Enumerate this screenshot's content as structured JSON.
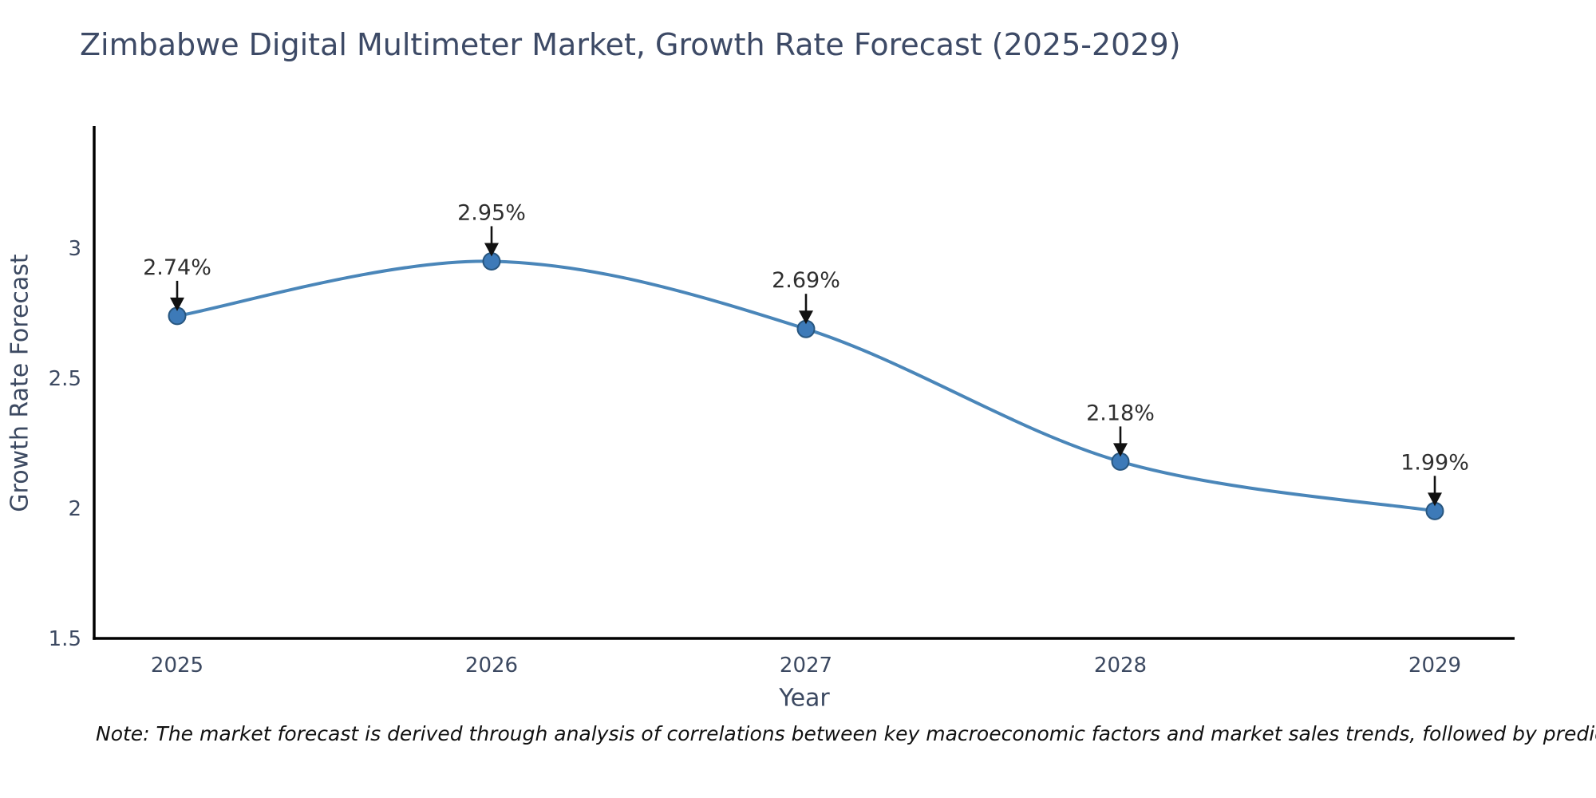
{
  "title": "Zimbabwe Digital Multimeter Market, Growth Rate Forecast (2025-2029)",
  "note": "Note: The market forecast is derived through analysis of correlations between key macroeconomic factors and market sales trends, followed by predictive modeling to project future sales",
  "chart_data": {
    "type": "line",
    "title": "Zimbabwe Digital Multimeter Market, Growth Rate Forecast (2025-2029)",
    "xlabel": "Year",
    "ylabel": "Growth Rate Forecast",
    "x": [
      2025,
      2026,
      2027,
      2028,
      2029
    ],
    "values": [
      2.74,
      2.95,
      2.69,
      2.18,
      1.99
    ],
    "point_labels": [
      "2.74%",
      "2.95%",
      "2.69%",
      "2.18%",
      "1.99%"
    ],
    "yticks": [
      1.5,
      2,
      2.5,
      3
    ],
    "ytick_labels": [
      "1.5",
      "2",
      "2.5",
      "3"
    ],
    "ylim": [
      1.5,
      3.47
    ],
    "grid": false,
    "legend": "none",
    "smooth": true,
    "annotations_style": "value-above-with-black-arrow",
    "colors": {
      "line": "#4a86b9",
      "marker_fill": "#3d7ab8",
      "marker_edge": "#28567f",
      "arrow": "#111111",
      "annotation_text": "#2f2f2f",
      "axis_text": "#3c4961",
      "spine": "#000000"
    }
  }
}
